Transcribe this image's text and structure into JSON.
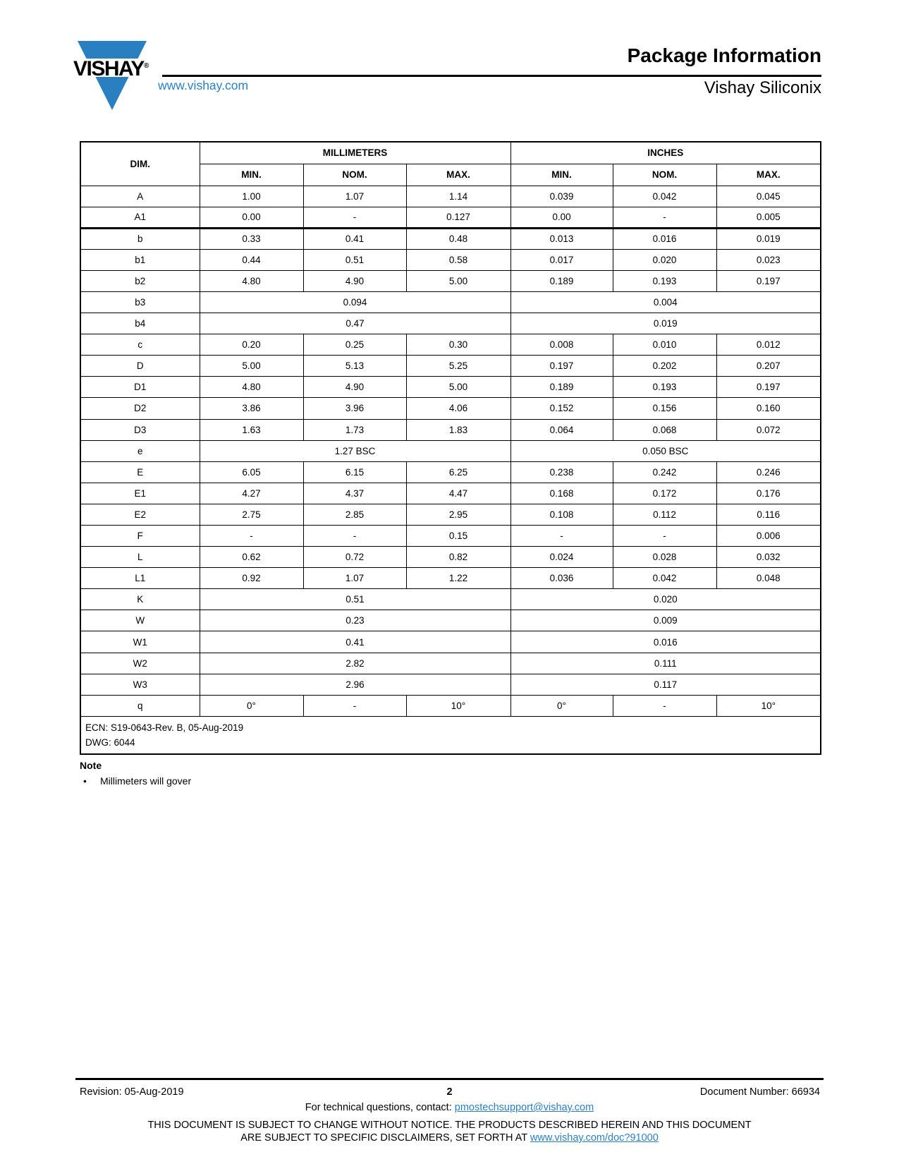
{
  "header": {
    "logo_text": "VISHAY",
    "logo_reg": "®",
    "website": "www.vishay.com",
    "title": "Package Information",
    "subtitle": "Vishay Siliconix"
  },
  "table": {
    "dim_header": "DIM.",
    "group_headers": [
      "MILLIMETERS",
      "INCHES"
    ],
    "sub_headers": [
      "MIN.",
      "NOM.",
      "MAX.",
      "MIN.",
      "NOM.",
      "MAX."
    ],
    "rows": [
      {
        "dim": "A",
        "cells": [
          "1.00",
          "1.07",
          "1.14",
          "0.039",
          "0.042",
          "0.045"
        ]
      },
      {
        "dim": "A1",
        "cells": [
          "0.00",
          "-",
          "0.127",
          "0.00",
          "-",
          "0.005"
        ],
        "thick_bottom": true
      },
      {
        "dim": "b",
        "cells": [
          "0.33",
          "0.41",
          "0.48",
          "0.013",
          "0.016",
          "0.019"
        ]
      },
      {
        "dim": "b1",
        "cells": [
          "0.44",
          "0.51",
          "0.58",
          "0.017",
          "0.020",
          "0.023"
        ]
      },
      {
        "dim": "b2",
        "cells": [
          "4.80",
          "4.90",
          "5.00",
          "0.189",
          "0.193",
          "0.197"
        ]
      },
      {
        "dim": "b3",
        "mm_span": "0.094",
        "in_span": "0.004"
      },
      {
        "dim": "b4",
        "mm_span": "0.47",
        "in_span": "0.019"
      },
      {
        "dim": "c",
        "cells": [
          "0.20",
          "0.25",
          "0.30",
          "0.008",
          "0.010",
          "0.012"
        ]
      },
      {
        "dim": "D",
        "cells": [
          "5.00",
          "5.13",
          "5.25",
          "0.197",
          "0.202",
          "0.207"
        ]
      },
      {
        "dim": "D1",
        "cells": [
          "4.80",
          "4.90",
          "5.00",
          "0.189",
          "0.193",
          "0.197"
        ]
      },
      {
        "dim": "D2",
        "cells": [
          "3.86",
          "3.96",
          "4.06",
          "0.152",
          "0.156",
          "0.160"
        ]
      },
      {
        "dim": "D3",
        "cells": [
          "1.63",
          "1.73",
          "1.83",
          "0.064",
          "0.068",
          "0.072"
        ]
      },
      {
        "dim": "e",
        "mm_span": "1.27 BSC",
        "in_span": "0.050 BSC"
      },
      {
        "dim": "E",
        "cells": [
          "6.05",
          "6.15",
          "6.25",
          "0.238",
          "0.242",
          "0.246"
        ]
      },
      {
        "dim": "E1",
        "cells": [
          "4.27",
          "4.37",
          "4.47",
          "0.168",
          "0.172",
          "0.176"
        ]
      },
      {
        "dim": "E2",
        "cells": [
          "2.75",
          "2.85",
          "2.95",
          "0.108",
          "0.112",
          "0.116"
        ]
      },
      {
        "dim": "F",
        "cells": [
          "-",
          "-",
          "0.15",
          "-",
          "-",
          "0.006"
        ]
      },
      {
        "dim": "L",
        "cells": [
          "0.62",
          "0.72",
          "0.82",
          "0.024",
          "0.028",
          "0.032"
        ]
      },
      {
        "dim": "L1",
        "cells": [
          "0.92",
          "1.07",
          "1.22",
          "0.036",
          "0.042",
          "0.048"
        ]
      },
      {
        "dim": "K",
        "mm_span": "0.51",
        "in_span": "0.020"
      },
      {
        "dim": "W",
        "mm_span": "0.23",
        "in_span": "0.009"
      },
      {
        "dim": "W1",
        "mm_span": "0.41",
        "in_span": "0.016"
      },
      {
        "dim": "W2",
        "mm_span": "2.82",
        "in_span": "0.111"
      },
      {
        "dim": "W3",
        "mm_span": "2.96",
        "in_span": "0.117"
      },
      {
        "dim": "q",
        "cells": [
          "0°",
          "-",
          "10°",
          "0°",
          "-",
          "10°"
        ]
      }
    ],
    "ecn_line1": "ECN: S19-0643-Rev. B, 05-Aug-2019",
    "ecn_line2": "DWG: 6044"
  },
  "note": {
    "heading": "Note",
    "bullet_glyph": "•",
    "bullet_text": "Millimeters will gover"
  },
  "footer": {
    "revision": "Revision: 05-Aug-2019",
    "page_number": "2",
    "document_number": "Document Number: 66934",
    "contact_prefix": "For technical questions, contact: ",
    "contact_link": "pmostechsupport@vishay.com",
    "disclaimer_line1": "THIS DOCUMENT IS SUBJECT TO CHANGE WITHOUT NOTICE. THE PRODUCTS DESCRIBED HEREIN AND THIS DOCUMENT",
    "disclaimer_line2_prefix": "ARE SUBJECT TO SPECIFIC DISCLAIMERS, SET FORTH AT ",
    "disclaimer_link": "www.vishay.com/doc?91000"
  },
  "colors": {
    "brand_blue": "#2a7fc1",
    "link_blue": "#2a7fc1",
    "text_black": "#000000"
  }
}
